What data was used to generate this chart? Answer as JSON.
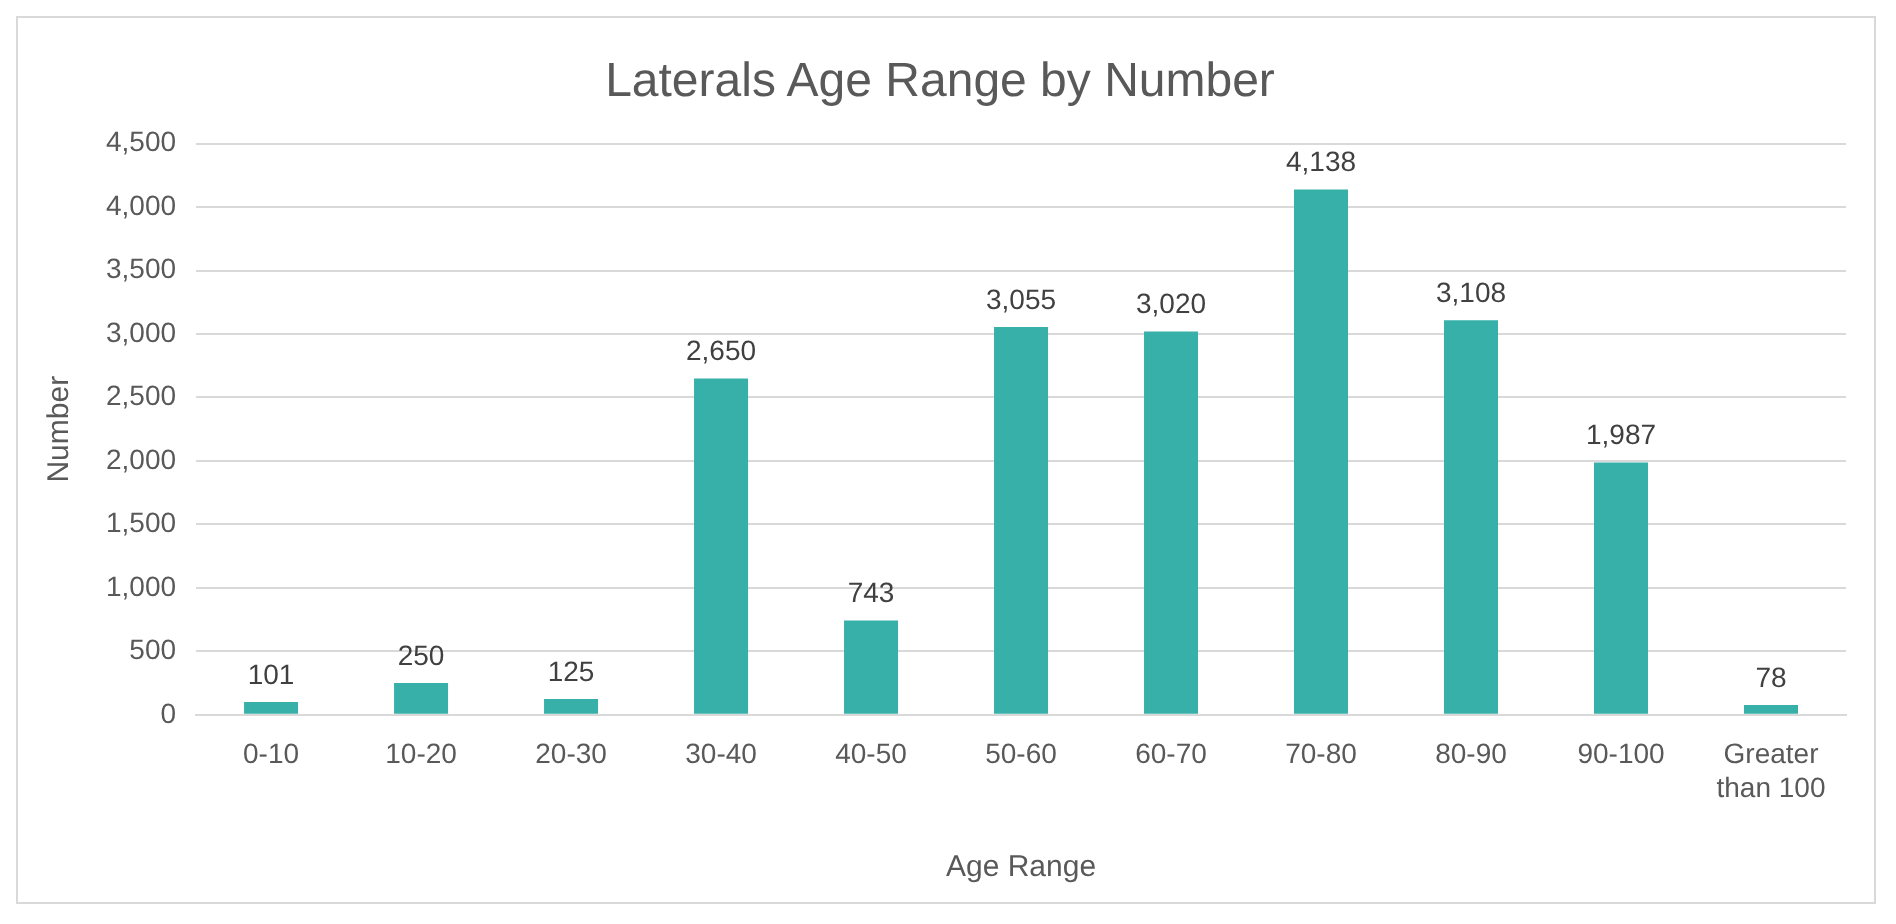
{
  "chart_data": {
    "type": "bar",
    "title": "Laterals Age Range by Number",
    "xlabel": "Age Range",
    "ylabel": "Number",
    "categories": [
      "0-10",
      "10-20",
      "20-30",
      "30-40",
      "40-50",
      "50-60",
      "60-70",
      "70-80",
      "80-90",
      "90-100",
      "Greater than 100"
    ],
    "values": [
      101,
      250,
      125,
      2650,
      743,
      3055,
      3020,
      4138,
      3108,
      1987,
      78
    ],
    "value_labels": [
      "101",
      "250",
      "125",
      "2,650",
      "743",
      "3,055",
      "3,020",
      "4,138",
      "3,108",
      "1,987",
      "78"
    ],
    "color": "#36b0a8",
    "ylim": [
      0,
      4500
    ],
    "yticks": [
      {
        "value": 0,
        "label": "0"
      },
      {
        "value": 500,
        "label": "500"
      },
      {
        "value": 1000,
        "label": "1,000"
      },
      {
        "value": 1500,
        "label": "1,500"
      },
      {
        "value": 2000,
        "label": "2,000"
      },
      {
        "value": 2500,
        "label": "2,500"
      },
      {
        "value": 3000,
        "label": "3,000"
      },
      {
        "value": 3500,
        "label": "3,500"
      },
      {
        "value": 4000,
        "label": "4,000"
      },
      {
        "value": 4500,
        "label": "4,500"
      }
    ],
    "grid": "y",
    "legend": false
  }
}
